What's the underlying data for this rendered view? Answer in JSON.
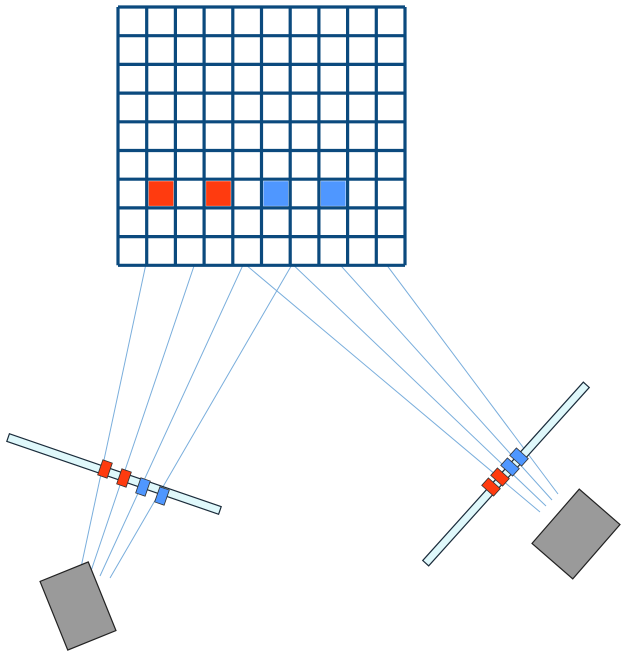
{
  "colors": {
    "grid_line": "#0b4a7e",
    "grid_fill": "#ffffff",
    "red_pixel": "#ff3b0f",
    "blue_pixel": "#4f97ff",
    "ray": "#7aaedc",
    "image_plane_fill": "#dff8fb",
    "image_plane_stroke": "#1a2b3a",
    "camera_fill": "#9a9a9a",
    "camera_stroke": "#222222"
  },
  "icons": {
    "camera": "camera-body-icon",
    "image_plane": "image-plane-icon"
  },
  "grid": {
    "columns": 10,
    "rows": 9,
    "highlighted_cells": [
      {
        "name": "red-cell-1",
        "row": 6,
        "col": 1,
        "color": "red"
      },
      {
        "name": "red-cell-2",
        "row": 6,
        "col": 3,
        "color": "red"
      },
      {
        "name": "blue-cell-1",
        "row": 6,
        "col": 5,
        "color": "blue"
      },
      {
        "name": "blue-cell-2",
        "row": 6,
        "col": 7,
        "color": "blue"
      }
    ]
  }
}
